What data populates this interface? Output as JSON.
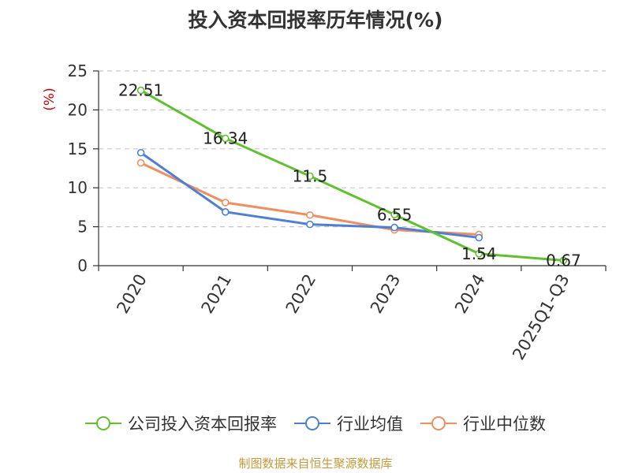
{
  "chart_data": {
    "type": "line",
    "title": "投入资本回报率历年情况(%)",
    "ylabel": "(%)",
    "xlabel": "",
    "categories": [
      "2020",
      "2021",
      "2022",
      "2023",
      "2024",
      "2025Q1-Q3"
    ],
    "ylim": [
      0,
      25
    ],
    "yticks": [
      0,
      5,
      10,
      15,
      20,
      25
    ],
    "grid": true,
    "legend_position": "bottom",
    "series": [
      {
        "name": "公司投入资本回报率",
        "color": "#5ec22a",
        "values": [
          22.51,
          16.34,
          11.5,
          6.55,
          1.54,
          0.67
        ],
        "labels": [
          "22.51",
          "16.34",
          "11.5",
          "6.55",
          "1.54",
          "0.67"
        ]
      },
      {
        "name": "行业均值",
        "color": "#4a7fdb",
        "values": [
          14.5,
          6.9,
          5.3,
          4.9,
          3.6,
          null
        ]
      },
      {
        "name": "行业中位数",
        "color": "#f48c5c",
        "values": [
          13.2,
          8.1,
          6.5,
          4.6,
          4.0,
          null
        ]
      }
    ],
    "source": "制图数据来自恒生聚源数据库",
    "source_color": "#c49a3a",
    "ylabel_color": "#cc0000"
  }
}
